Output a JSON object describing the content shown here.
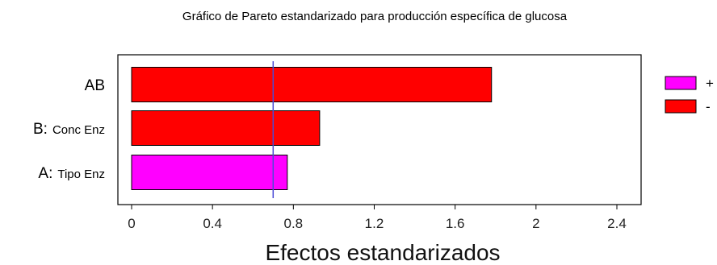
{
  "chart_data": {
    "type": "bar",
    "orientation": "horizontal",
    "title": "Gráfico de Pareto estandarizado para producción específica de glucosa",
    "xlabel": "Efectos estandarizados",
    "ylabel": "",
    "xlim": [
      0,
      2.4
    ],
    "xticks": [
      "0",
      "0.4",
      "0.8",
      "1.2",
      "1.6",
      "2",
      "2.4"
    ],
    "grid": false,
    "reference_line": 0.7,
    "categories": [
      {
        "factor": "AB",
        "name": ""
      },
      {
        "factor": "B:",
        "name": "Conc Enz"
      },
      {
        "factor": "A:",
        "name": "Tipo Enz"
      }
    ],
    "values": [
      1.78,
      0.93,
      0.77
    ],
    "signs": [
      "-",
      "-",
      "+"
    ],
    "legend": {
      "placement": "right",
      "entries": [
        {
          "label": "+",
          "color": "#ff00ff"
        },
        {
          "label": "-",
          "color": "#ff0000"
        }
      ]
    },
    "colors": {
      "positive": "#ff00ff",
      "negative": "#ff0000",
      "reference_line": "#4a4ad6",
      "frame": "#000000"
    }
  }
}
